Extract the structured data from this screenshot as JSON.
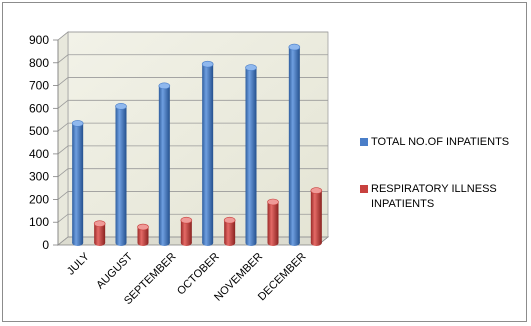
{
  "chart_data": {
    "type": "bar",
    "categories": [
      "JULY",
      "AUGUST",
      "SEPTEMBER",
      "OCTOBER",
      "NOVEMBER",
      "DECEMBER"
    ],
    "series": [
      {
        "name": "TOTAL NO.OF INPATIENTS",
        "values": [
          525,
          600,
          690,
          785,
          770,
          860
        ],
        "color": "#4a7ec8"
      },
      {
        "name": "RESPIRATORY ILLNESS INPATIENTS",
        "values": [
          85,
          70,
          100,
          100,
          180,
          230
        ],
        "color": "#c8413e"
      }
    ],
    "title": "",
    "xlabel": "",
    "ylabel": "",
    "ylim": [
      0,
      900
    ],
    "yticks": [
      "0",
      "100",
      "200",
      "300",
      "400",
      "500",
      "600",
      "700",
      "800",
      "900"
    ],
    "grid": true,
    "legend_position": "right",
    "style": "3d-cylinder"
  }
}
